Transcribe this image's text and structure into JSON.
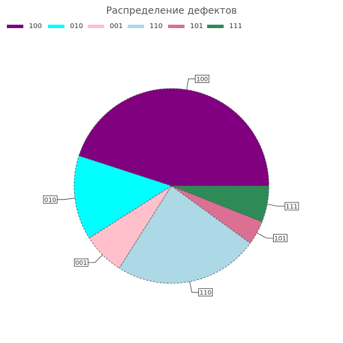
{
  "chart_data": {
    "type": "pie",
    "title": "Распределение дефектов",
    "legend_position": "top-left",
    "slices": [
      {
        "label": "100",
        "value": 45,
        "color": "#800080"
      },
      {
        "label": "010",
        "value": 14,
        "color": "#00ffff"
      },
      {
        "label": "001",
        "value": 7,
        "color": "#ffc0cb"
      },
      {
        "label": "110",
        "value": 24,
        "color": "#add8e6"
      },
      {
        "label": "101",
        "value": 4,
        "color": "#db7093"
      },
      {
        "label": "111",
        "value": 6,
        "color": "#2e8b57"
      }
    ]
  }
}
